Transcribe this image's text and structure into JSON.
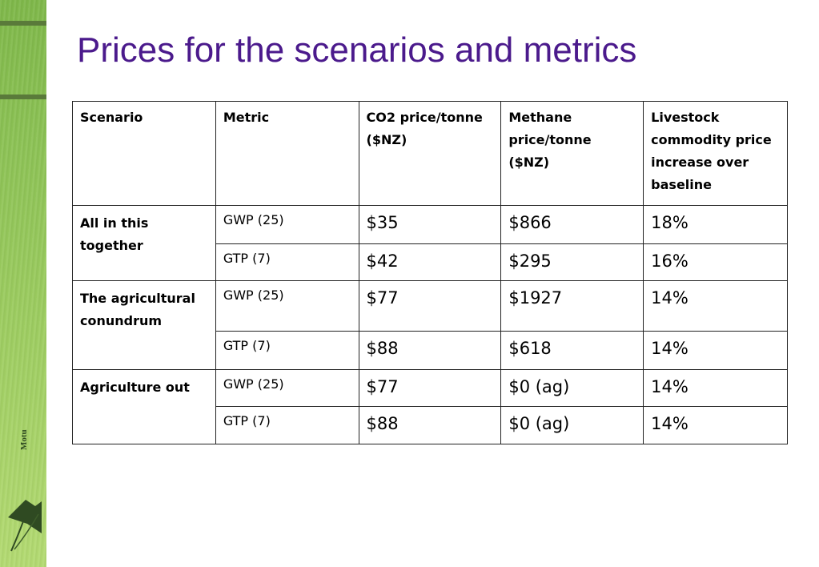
{
  "slide": {
    "title": "Prices for the scenarios and metrics",
    "logo_text": "Motu"
  },
  "table": {
    "headers": [
      "Scenario",
      "Metric",
      "CO2 price/tonne ($NZ)",
      "Methane price/tonne ($NZ)",
      "Livestock commodity price increase over baseline"
    ],
    "groups": [
      {
        "scenario": "All in this together",
        "rows": [
          {
            "metric": "GWP (25)",
            "co2": "$35",
            "methane": "$866",
            "livestock": "18%"
          },
          {
            "metric": "GTP (7)",
            "co2": "$42",
            "methane": "$295",
            "livestock": "16%"
          }
        ]
      },
      {
        "scenario": "The agricultural conundrum",
        "rows": [
          {
            "metric": "GWP (25)",
            "co2": "$77",
            "methane": "$1927",
            "livestock": "14%"
          },
          {
            "metric": "GTP (7)",
            "co2": "$88",
            "methane": "$618",
            "livestock": "14%"
          }
        ]
      },
      {
        "scenario": "Agriculture out",
        "rows": [
          {
            "metric": "GWP (25)",
            "co2": "$77",
            "methane": "$0 (ag)",
            "livestock": "14%"
          },
          {
            "metric": "GTP (7)",
            "co2": "$88",
            "methane": "$0 (ag)",
            "livestock": "14%"
          }
        ]
      }
    ]
  },
  "colors": {
    "title": "#4b1a8c",
    "sidebar_green": "#8cc255",
    "border": "#222222"
  }
}
